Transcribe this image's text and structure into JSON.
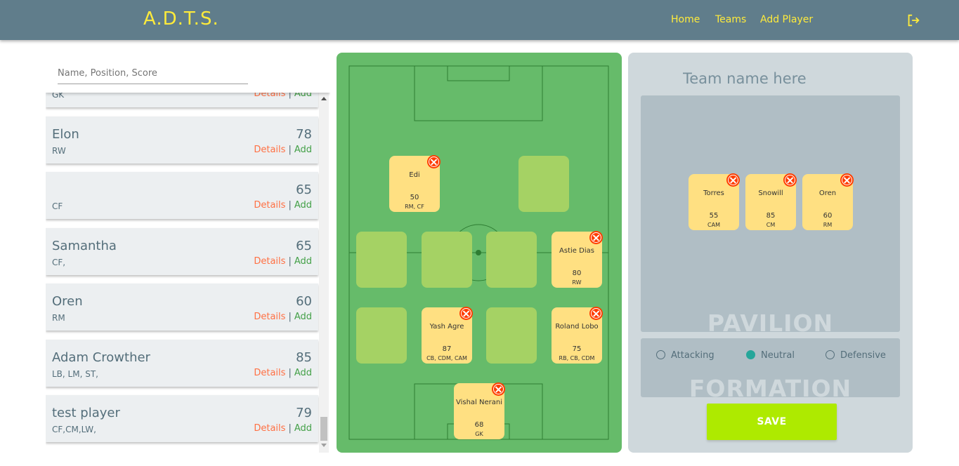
{
  "header": {
    "brand": "A.D.T.S.",
    "nav": [
      {
        "label": "Home"
      },
      {
        "label": "Teams"
      },
      {
        "label": "Add Player"
      }
    ],
    "logout_icon": "logout-icon"
  },
  "search": {
    "placeholder": "Name, Position, Score"
  },
  "players": [
    {
      "name": "",
      "score": "",
      "position": "GK",
      "details": "Details",
      "add": "Add"
    },
    {
      "name": "Elon",
      "score": "78",
      "position": "RW",
      "details": "Details",
      "add": "Add"
    },
    {
      "name": "",
      "score": "65",
      "position": "CF",
      "details": "Details",
      "add": "Add"
    },
    {
      "name": "Samantha",
      "score": "65",
      "position": "CF,",
      "details": "Details",
      "add": "Add"
    },
    {
      "name": "Oren",
      "score": "60",
      "position": "RM",
      "details": "Details",
      "add": "Add"
    },
    {
      "name": "Adam Crowther",
      "score": "85",
      "position": "LB, LM, ST,",
      "details": "Details",
      "add": "Add"
    },
    {
      "name": "test player",
      "score": "79",
      "position": "CF,CM,LW,",
      "details": "Details",
      "add": "Add"
    }
  ],
  "field": {
    "placed": [
      {
        "name": "Edi",
        "score": "50",
        "positions": "RM, CF"
      },
      {
        "name": "Astie Dias",
        "score": "80",
        "positions": "RW"
      },
      {
        "name": "Yash Agre",
        "score": "87",
        "positions": "CB, CDM, CAM"
      },
      {
        "name": "Roland Lobo",
        "score": "75",
        "positions": "RB, CB, CDM"
      },
      {
        "name": "Vishal Nerani",
        "score": "68",
        "positions": "GK"
      }
    ],
    "colors": {
      "pitch": "#66bb6a",
      "slot": "#a5d264",
      "card": "#ffe082",
      "remove": "#ff3d00"
    }
  },
  "team": {
    "name_placeholder": "Team name here",
    "pavilion_label": "PAVILION",
    "pavilion": [
      {
        "name": "Torres",
        "score": "55",
        "positions": "CAM"
      },
      {
        "name": "Snowill",
        "score": "85",
        "positions": "CM"
      },
      {
        "name": "Oren",
        "score": "60",
        "positions": "RM"
      }
    ],
    "formation_label": "FORMATION",
    "formation_options": [
      {
        "label": "Attacking",
        "selected": false
      },
      {
        "label": "Neutral",
        "selected": true
      },
      {
        "label": "Defensive",
        "selected": false
      }
    ],
    "save_label": "SAVE"
  }
}
